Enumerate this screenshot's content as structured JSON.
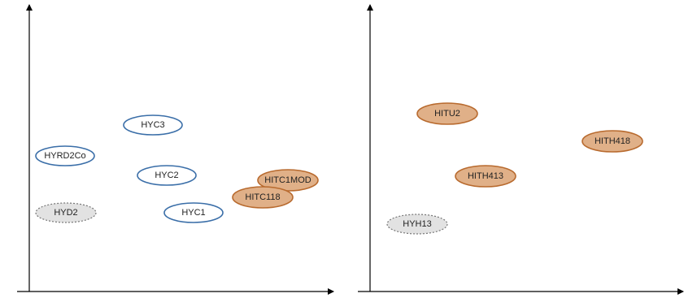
{
  "panels": [
    {
      "nodes": [
        {
          "label": "HYC3",
          "style": "outline-blue"
        },
        {
          "label": "HYRD2Co",
          "style": "outline-blue"
        },
        {
          "label": "HYC2",
          "style": "outline-blue"
        },
        {
          "label": "HYC1",
          "style": "outline-blue"
        },
        {
          "label": "HYD2",
          "style": "dashed-grey"
        },
        {
          "label": "HITC1MOD",
          "style": "filled-orange"
        },
        {
          "label": "HITC118",
          "style": "filled-orange"
        }
      ]
    },
    {
      "nodes": [
        {
          "label": "HITU2",
          "style": "filled-orange"
        },
        {
          "label": "HITH418",
          "style": "filled-orange"
        },
        {
          "label": "HITH413",
          "style": "filled-orange"
        },
        {
          "label": "HYH13",
          "style": "dashed-grey"
        }
      ]
    }
  ],
  "colors": {
    "outline_blue": "#3a6ea8",
    "filled_orange_fill": "#e0b088",
    "filled_orange_stroke": "#b86a2e",
    "dashed_grey_fill": "#e2e2e2",
    "dashed_grey_stroke": "#777777"
  }
}
